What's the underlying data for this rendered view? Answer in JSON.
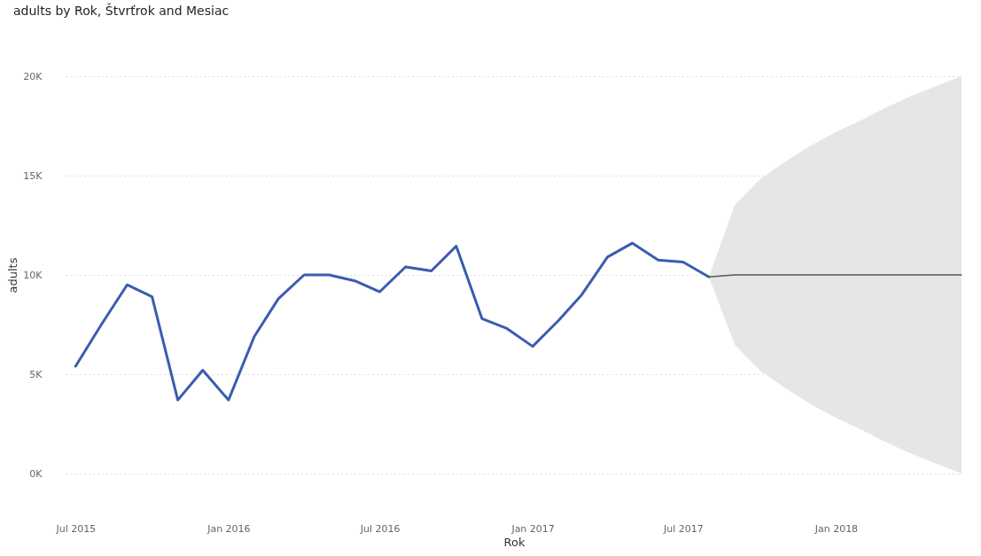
{
  "chart_data": {
    "type": "line",
    "title": "adults by Rok, Štvrťrok and Mesiac",
    "xlabel": "Rok",
    "ylabel": "adults",
    "xlim": [
      "2015-06-20",
      "2018-06"
    ],
    "xticks": [
      {
        "value": "2015-07",
        "label": "Jul 2015"
      },
      {
        "value": "2016-01",
        "label": "Jan 2016"
      },
      {
        "value": "2016-07",
        "label": "Jul 2016"
      },
      {
        "value": "2017-01",
        "label": "Jan 2017"
      },
      {
        "value": "2017-07",
        "label": "Jul 2017"
      },
      {
        "value": "2018-01",
        "label": "Jan 2018"
      }
    ],
    "ylim": [
      0,
      20000
    ],
    "yticks": [
      {
        "value": 0,
        "label": "0K"
      },
      {
        "value": 5000,
        "label": "5K"
      },
      {
        "value": 10000,
        "label": "10K"
      },
      {
        "value": 15000,
        "label": "15K"
      },
      {
        "value": 20000,
        "label": "20K"
      }
    ],
    "grid": "y",
    "line_style": "solid",
    "series": [
      {
        "color": "#3a5cb0",
        "x": [
          "2015-07",
          "2015-08",
          "2015-09",
          "2015-10",
          "2015-11",
          "2015-12",
          "2016-01",
          "2016-02",
          "2016-03",
          "2016-04",
          "2016-05",
          "2016-06",
          "2016-07",
          "2016-08",
          "2016-09",
          "2016-10",
          "2016-11",
          "2016-12",
          "2017-01",
          "2017-02",
          "2017-03",
          "2017-04",
          "2017-05",
          "2017-06",
          "2017-07",
          "2017-08"
        ],
        "values": [
          5400,
          7500,
          9500,
          8900,
          3700,
          5200,
          3700,
          6900,
          8800,
          10000,
          10000,
          9700,
          9150,
          10400,
          10200,
          11450,
          7800,
          7300,
          6400,
          7700,
          9000,
          10900,
          11600,
          10750,
          10650,
          9900
        ]
      },
      {
        "color": "#555555",
        "x": [
          "2017-08",
          "2017-09",
          "2017-10",
          "2017-11",
          "2017-12",
          "2018-01",
          "2018-02",
          "2018-03",
          "2018-04",
          "2018-05",
          "2018-06"
        ],
        "values": [
          9900,
          10000,
          10000,
          10000,
          10000,
          10000,
          10000,
          10000,
          10000,
          10000,
          10000
        ],
        "lower": [
          9900,
          6500,
          5200,
          4300,
          3500,
          2800,
          2200,
          1600,
          1000,
          500,
          0
        ],
        "upper": [
          9900,
          13500,
          14800,
          15700,
          16500,
          17200,
          17800,
          18400,
          19000,
          19500,
          20000
        ]
      }
    ]
  }
}
